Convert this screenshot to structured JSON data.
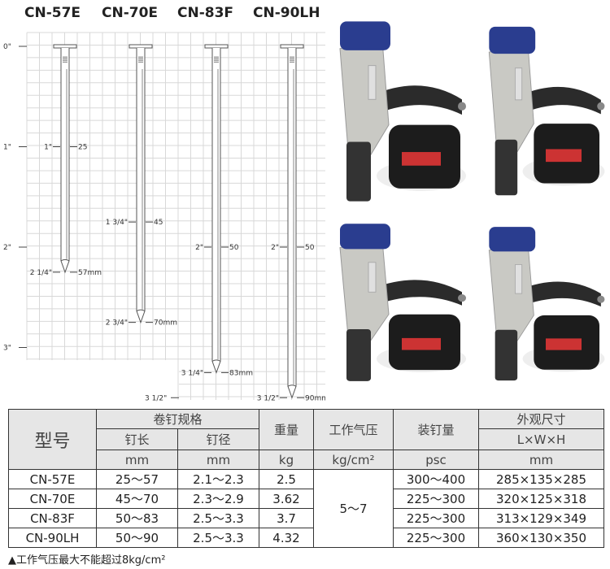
{
  "models": [
    "CN-57E",
    "CN-70E",
    "CN-83F",
    "CN-90LH"
  ],
  "inch_scale": [
    "0\"",
    "1\"",
    "2\"",
    "3\"",
    "3 1/2\""
  ],
  "nails": [
    {
      "model": "CN-57E",
      "length_in": 2.25,
      "marks": [
        {
          "in": 1,
          "left": "1\"",
          "right": "25"
        },
        {
          "in": 2.25,
          "left": "2 1/4\"",
          "right": "57mm"
        }
      ]
    },
    {
      "model": "CN-70E",
      "length_in": 2.75,
      "marks": [
        {
          "in": 1.75,
          "left": "1 3/4\"",
          "right": "45"
        },
        {
          "in": 2.75,
          "left": "2 3/4\"",
          "right": "70mm"
        }
      ]
    },
    {
      "model": "CN-83F",
      "length_in": 3.25,
      "marks": [
        {
          "in": 2,
          "left": "2\"",
          "right": "50"
        },
        {
          "in": 3.25,
          "left": "3 1/4\"",
          "right": "83mm"
        }
      ]
    },
    {
      "model": "CN-90LH",
      "length_in": 3.5,
      "marks": [
        {
          "in": 2,
          "left": "2\"",
          "right": "50"
        },
        {
          "in": 3.5,
          "left": "3 1/2\"",
          "right": "90mm"
        }
      ]
    }
  ],
  "table": {
    "h_model": "型号",
    "h_spec": "卷钉规格",
    "h_len": "钉长",
    "h_dia": "钉径",
    "h_weight": "重量",
    "h_pressure": "工作气压",
    "h_capacity": "装钉量",
    "h_dims": "外观尺寸",
    "h_lwh": "L×W×H",
    "u_len": "mm",
    "u_dia": "mm",
    "u_weight": "kg",
    "u_pressure": "kg/cm²",
    "u_capacity": "psc",
    "u_dims": "mm",
    "pressure": "5～7",
    "rows": [
      {
        "model": "CN-57E",
        "len": "25～57",
        "dia": "2.1～2.3",
        "weight": "2.5",
        "capacity": "300～400",
        "dims": "285×135×285"
      },
      {
        "model": "CN-70E",
        "len": "45～70",
        "dia": "2.3～2.9",
        "weight": "3.62",
        "capacity": "225～300",
        "dims": "320×125×318"
      },
      {
        "model": "CN-83F",
        "len": "50～83",
        "dia": "2.5～3.3",
        "weight": "3.7",
        "capacity": "225～300",
        "dims": "313×129×349"
      },
      {
        "model": "CN-90LH",
        "len": "50～90",
        "dia": "2.5～3.3",
        "weight": "4.32",
        "capacity": "225～300",
        "dims": "360×130×350"
      }
    ]
  },
  "note": "▲工作气压最大不能超过8kg/cm²",
  "colors": {
    "tool_blue": "#2a3d8f",
    "tool_body": "#c9c9c4",
    "magazine": "#1c1c1c",
    "grid": "#d8d8d8"
  }
}
